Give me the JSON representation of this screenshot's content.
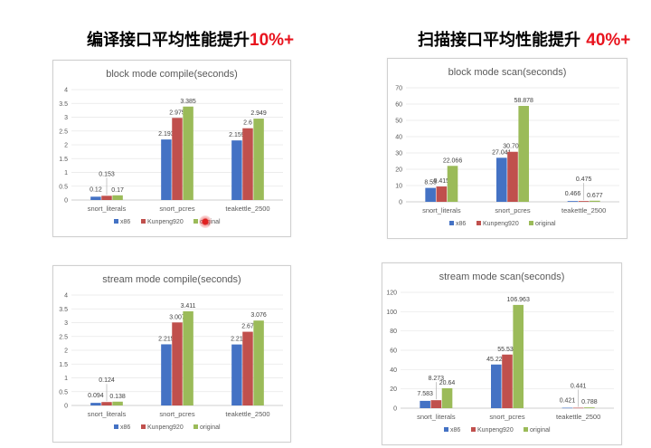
{
  "headings": {
    "left": {
      "text": "编译接口平均性能提升",
      "pct": "10%+"
    },
    "right": {
      "text": "扫描接口平均性能提升 ",
      "pct": "40%+"
    }
  },
  "colors": {
    "x86": "#4472c4",
    "Kunpeng920": "#c0504d",
    "original": "#9bbb59"
  },
  "chart_data": [
    {
      "type": "bar",
      "title": "block mode compile(seconds)",
      "categories": [
        "snort_literals",
        "snort_pcres",
        "teakettle_2500"
      ],
      "ylim": [
        0,
        4
      ],
      "yticks": [
        0,
        0.5,
        1,
        1.5,
        2,
        2.5,
        3,
        3.5,
        4
      ],
      "series": [
        {
          "name": "x86",
          "values": [
            0.12,
            2.193,
            2.159
          ],
          "labels": [
            "0.12",
            "2.193",
            "2.159"
          ]
        },
        {
          "name": "Kunpeng920",
          "values": [
            0.153,
            2.975,
            2.6
          ],
          "labels": [
            "0.153",
            "2.975",
            "2.6"
          ]
        },
        {
          "name": "original",
          "values": [
            0.17,
            3.385,
            2.949
          ],
          "labels": [
            "0.17",
            "3.385",
            "2.949"
          ]
        }
      ],
      "legend_labels": [
        "x86",
        "Kunpeng920",
        "original"
      ],
      "legend": "bottom",
      "grid": true
    },
    {
      "type": "bar",
      "title": "block mode scan(seconds)",
      "categories": [
        "snort_literals",
        "snort_pcres",
        "teakettle_2500"
      ],
      "ylim": [
        0,
        70
      ],
      "yticks": [
        0,
        10,
        20,
        30,
        40,
        50,
        60,
        70
      ],
      "series": [
        {
          "name": "x86",
          "values": [
            8.55,
            27.041,
            0.466
          ],
          "labels": [
            "8.55",
            "27.041",
            "0.466"
          ]
        },
        {
          "name": "Kunpeng920",
          "values": [
            9.415,
            30.702,
            0.475
          ],
          "labels": [
            "9.415",
            "30.702",
            "0.475"
          ]
        },
        {
          "name": "original",
          "values": [
            22.066,
            58.878,
            0.677
          ],
          "labels": [
            "22.066",
            "58.878",
            "0.677"
          ]
        }
      ],
      "legend_labels": [
        "x86",
        "Kunpeng920",
        "original"
      ],
      "legend": "bottom",
      "grid": true
    },
    {
      "type": "bar",
      "title": "stream mode compile(seconds)",
      "categories": [
        "snort_literals",
        "snort_pcres",
        "teakettle_2500"
      ],
      "ylim": [
        0,
        4
      ],
      "yticks": [
        0,
        0.5,
        1,
        1.5,
        2,
        2.5,
        3,
        3.5,
        4
      ],
      "series": [
        {
          "name": "x86",
          "values": [
            0.094,
            2.215,
            2.21
          ],
          "labels": [
            "0.094",
            "2.215",
            "2.21"
          ]
        },
        {
          "name": "Kunpeng920",
          "values": [
            0.124,
            3.007,
            2.67
          ],
          "labels": [
            "0.124",
            "3.007",
            "2.67"
          ]
        },
        {
          "name": "original",
          "values": [
            0.138,
            3.411,
            3.076
          ],
          "labels": [
            "0.138",
            "3.411",
            "3.076"
          ]
        }
      ],
      "legend_labels": [
        "x86",
        "Kunpeng920",
        "original"
      ],
      "legend": "bottom",
      "grid": true
    },
    {
      "type": "bar",
      "title": "stream mode scan(seconds)",
      "categories": [
        "snort_literals",
        "snort_pcres",
        "teakettle_2500"
      ],
      "ylim": [
        0,
        120
      ],
      "yticks": [
        0,
        20,
        40,
        60,
        80,
        100,
        120
      ],
      "series": [
        {
          "name": "x86",
          "values": [
            7.583,
            45.225,
            0.421
          ],
          "labels": [
            "7.583",
            "45.225",
            "0.421"
          ]
        },
        {
          "name": "Kunpeng920",
          "values": [
            8.273,
            55.535,
            0.441
          ],
          "labels": [
            "8.273",
            "55.535",
            "0.441"
          ]
        },
        {
          "name": "original",
          "values": [
            20.64,
            106.963,
            0.788
          ],
          "labels": [
            "20.64",
            "106.963",
            "0.788"
          ]
        }
      ],
      "legend_labels": [
        "x86",
        "Kunpeng920",
        "original"
      ],
      "legend": "bottom",
      "grid": true
    }
  ]
}
